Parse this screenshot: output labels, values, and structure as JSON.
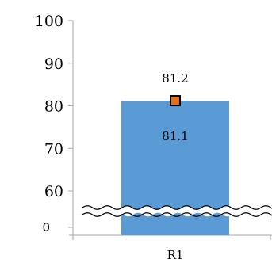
{
  "chart_data": {
    "type": "bar",
    "categories": [
      "R1"
    ],
    "values": [
      81.1
    ],
    "value_labels": [
      "81.1"
    ],
    "marker": {
      "value": 81.2,
      "label": "81.2",
      "color": "#e0701b",
      "stroke": "#000000"
    },
    "ylim": [
      50,
      100
    ],
    "y_ticks": [
      60,
      70,
      80,
      90,
      100
    ],
    "y_tick_labels": [
      "60",
      "70",
      "80",
      "90",
      "100"
    ],
    "axis_break": {
      "label": "0"
    },
    "grid": false,
    "legend": "none",
    "bar_color": "#5b9bd5",
    "axis_color": "#a6a6a6",
    "title": "",
    "xlabel": "",
    "ylabel": ""
  }
}
